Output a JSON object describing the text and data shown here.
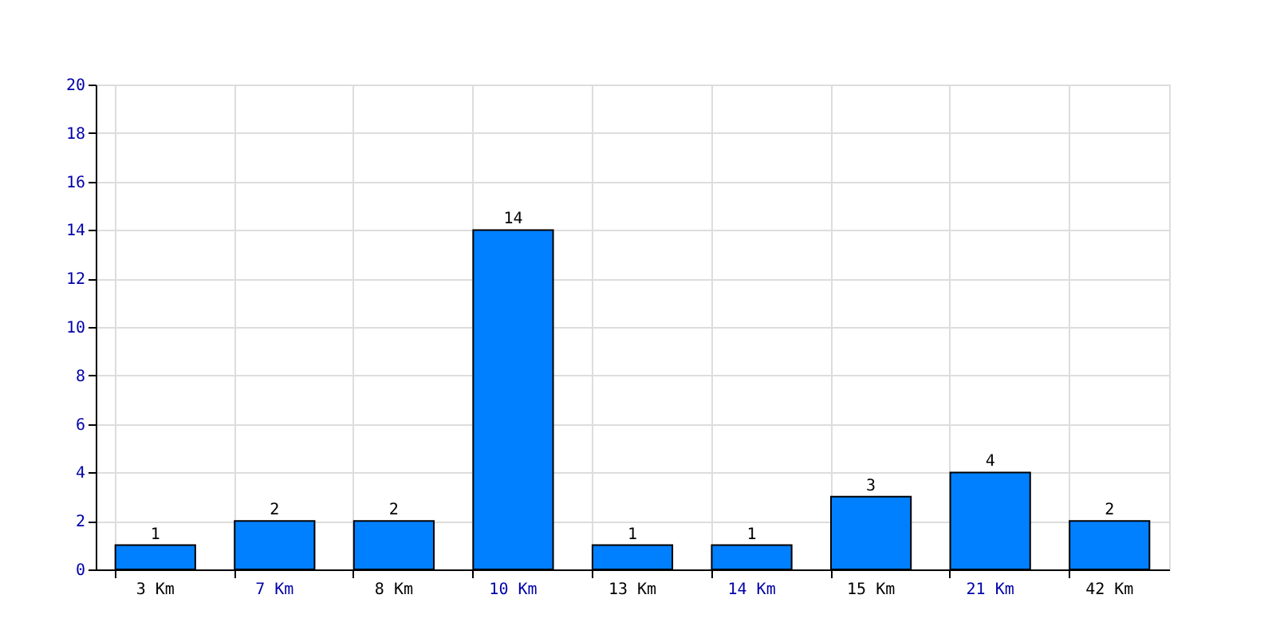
{
  "chart_data": {
    "type": "bar",
    "categories": [
      "3 Km",
      "7 Km",
      "8 Km",
      "10 Km",
      "13 Km",
      "14 Km",
      "15 Km",
      "21 Km",
      "42 Km"
    ],
    "values": [
      1,
      2,
      2,
      14,
      1,
      1,
      3,
      4,
      2
    ],
    "color": "#0080ff",
    "ylim": [
      0,
      20
    ],
    "yticks": [
      0,
      2,
      4,
      6,
      8,
      10,
      12,
      14,
      16,
      18,
      20
    ],
    "grid": true,
    "data_labels": true
  }
}
